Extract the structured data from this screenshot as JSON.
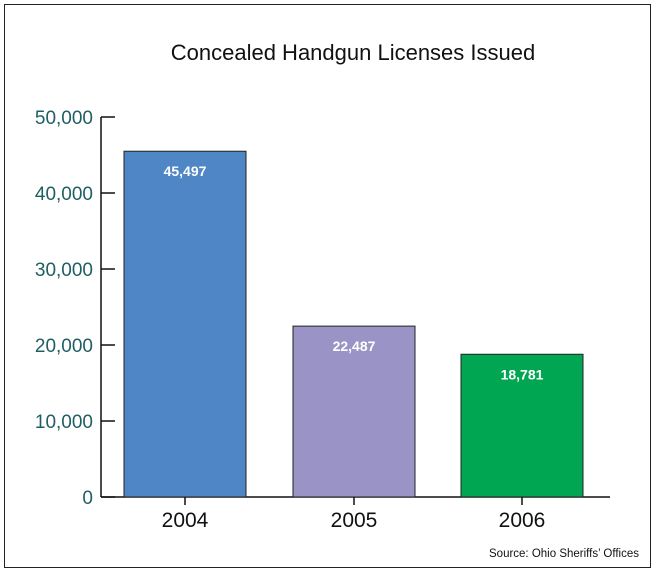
{
  "chart_data": {
    "type": "bar",
    "title": "Concealed Handgun Licenses Issued",
    "categories": [
      "2004",
      "2005",
      "2006"
    ],
    "values": [
      45497,
      22487,
      18781
    ],
    "data_labels": [
      "45,497",
      "22,487",
      "18,781"
    ],
    "bar_colors": [
      "#4f86c6",
      "#9a93c6",
      "#00a651"
    ],
    "ylim": [
      0,
      50000
    ],
    "yticks": [
      0,
      10000,
      20000,
      30000,
      40000,
      50000
    ],
    "ytick_labels": [
      "0",
      "10,000",
      "20,000",
      "30,000",
      "40,000",
      "50,000"
    ],
    "grid": false,
    "source": "Source: Ohio Sheriffs’ Offices"
  }
}
